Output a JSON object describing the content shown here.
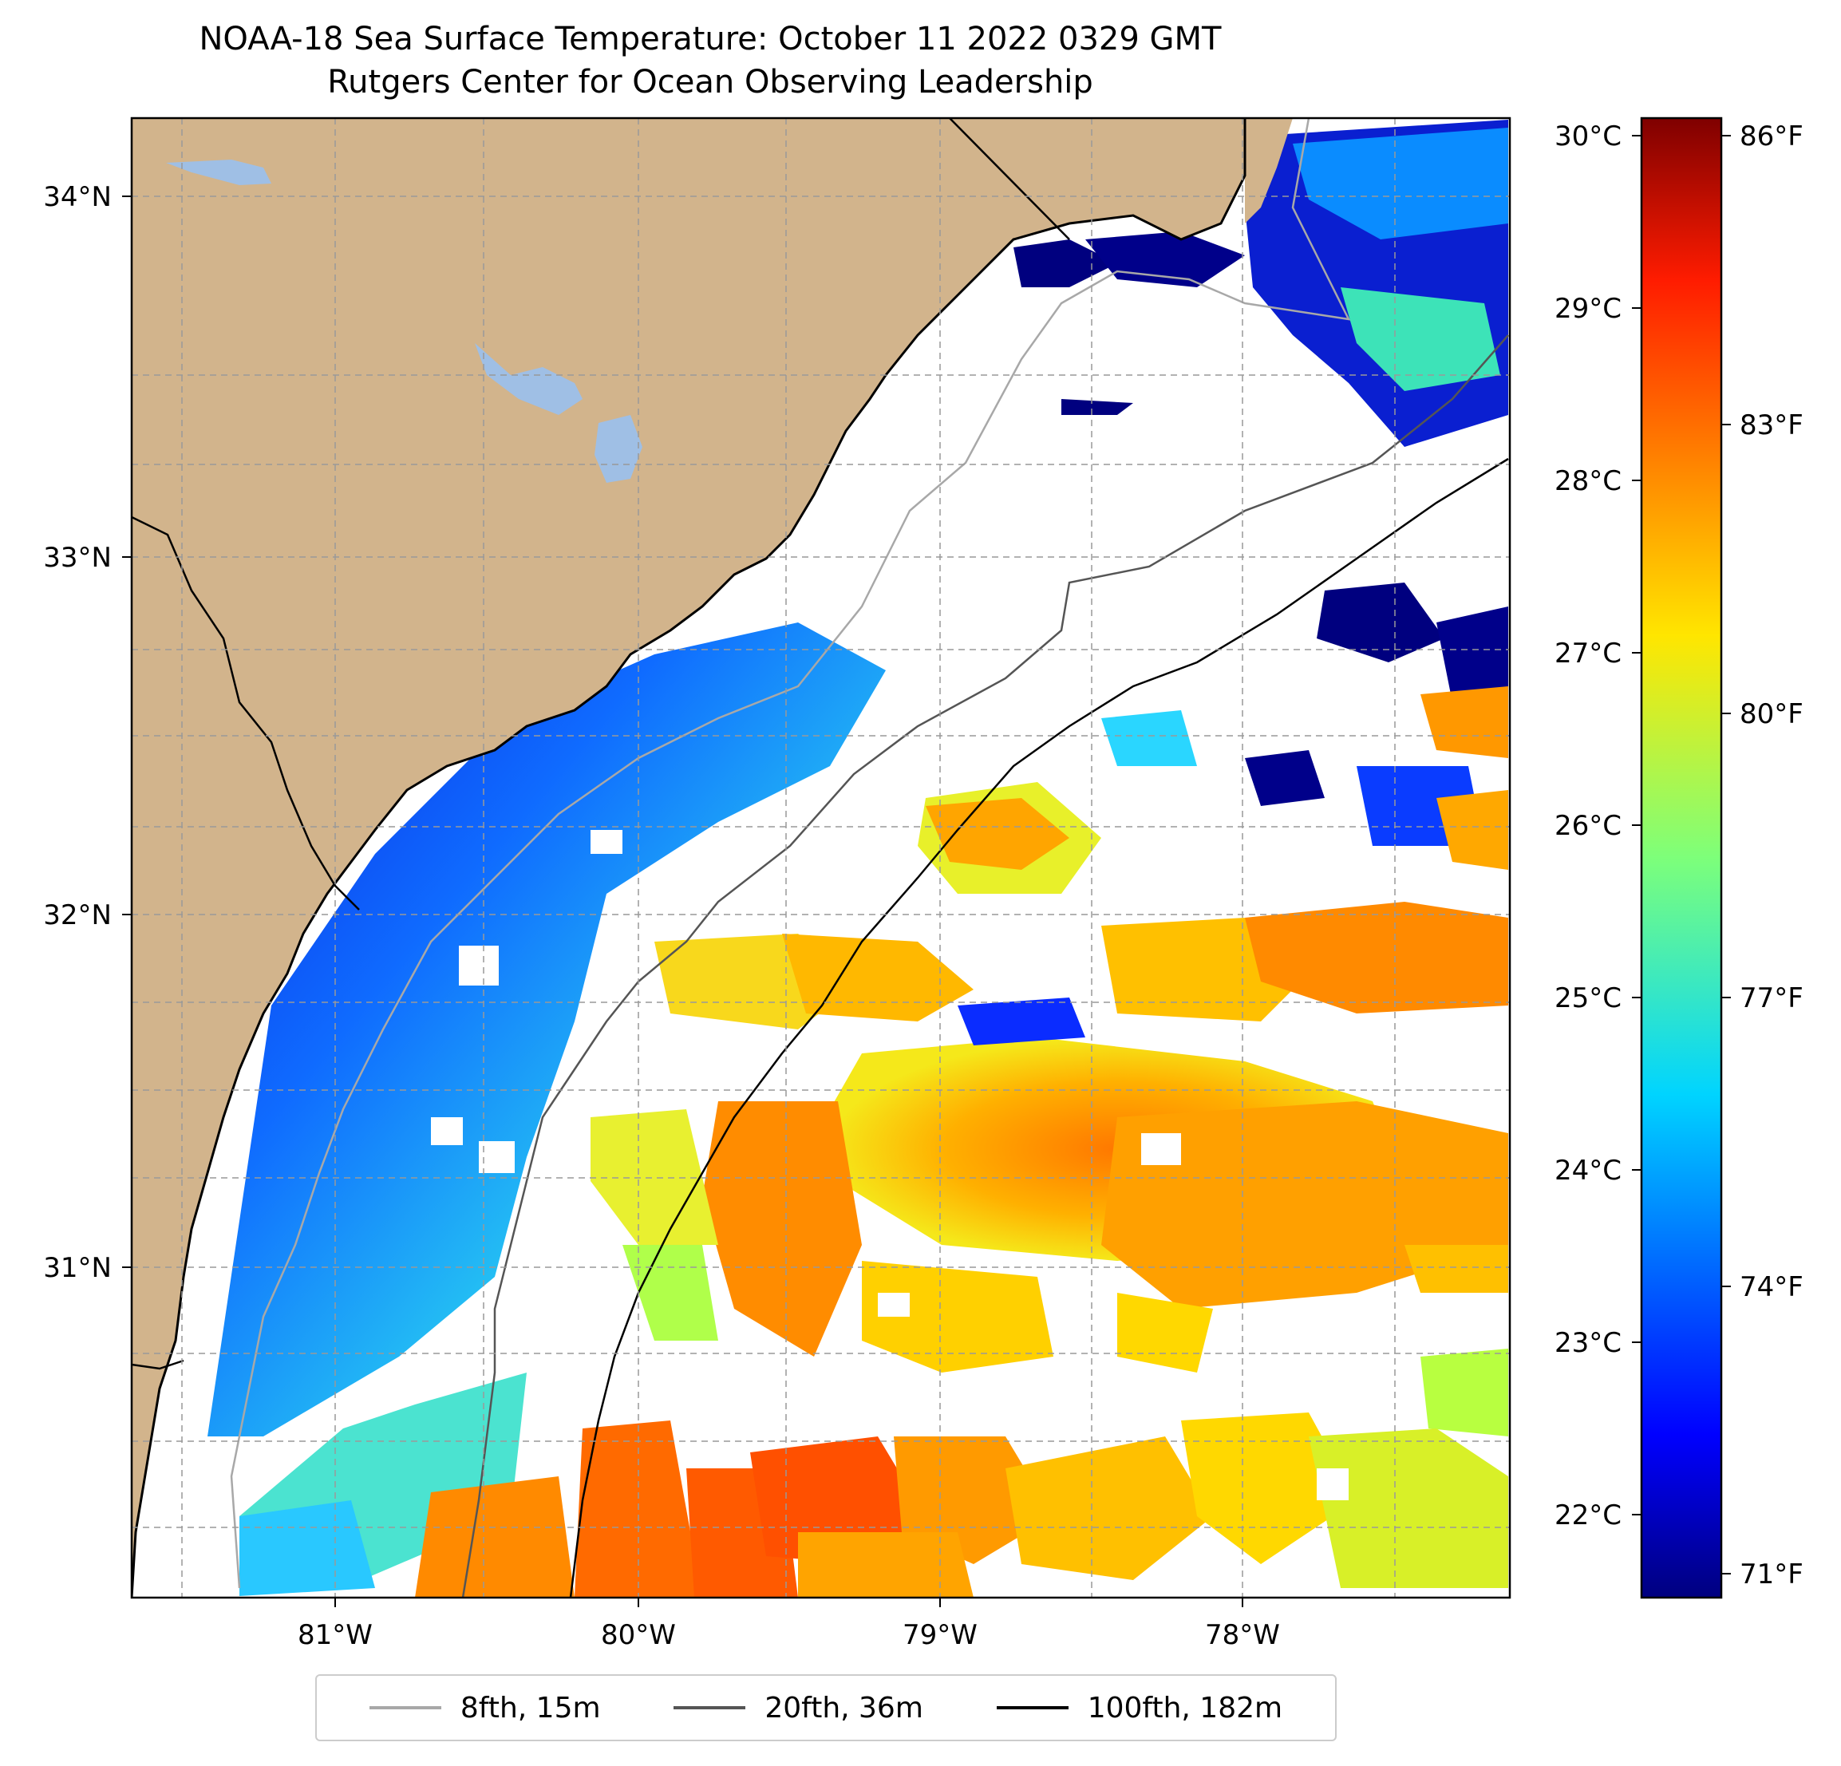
{
  "title": "NOAA-18 Sea Surface Temperature: October 11 2022 0329 GMT",
  "subtitle": "Rutgers Center for Ocean Observing Leadership",
  "axes": {
    "lon_ticks": [
      "81°W",
      "80°W",
      "79°W",
      "78°W"
    ],
    "lat_ticks": [
      "34°N",
      "33°N",
      "32°N",
      "31°N"
    ]
  },
  "colorbar": {
    "celsius_ticks": [
      "30°C",
      "29°C",
      "28°C",
      "27°C",
      "26°C",
      "25°C",
      "24°C",
      "23°C",
      "22°C"
    ],
    "fahrenheit_ticks": [
      "86°F",
      "83°F",
      "80°F",
      "77°F",
      "74°F",
      "71°F"
    ],
    "colormap": "jet"
  },
  "legend": [
    {
      "label": "8fth, 15m",
      "color": "#a8a8a8"
    },
    {
      "label": "20fth, 36m",
      "color": "#555555"
    },
    {
      "label": "100fth, 182m",
      "color": "#000000"
    }
  ],
  "colors": {
    "land": "#d2b48c",
    "lake": "#9fbfe5",
    "nodata": "#ffffff"
  }
}
